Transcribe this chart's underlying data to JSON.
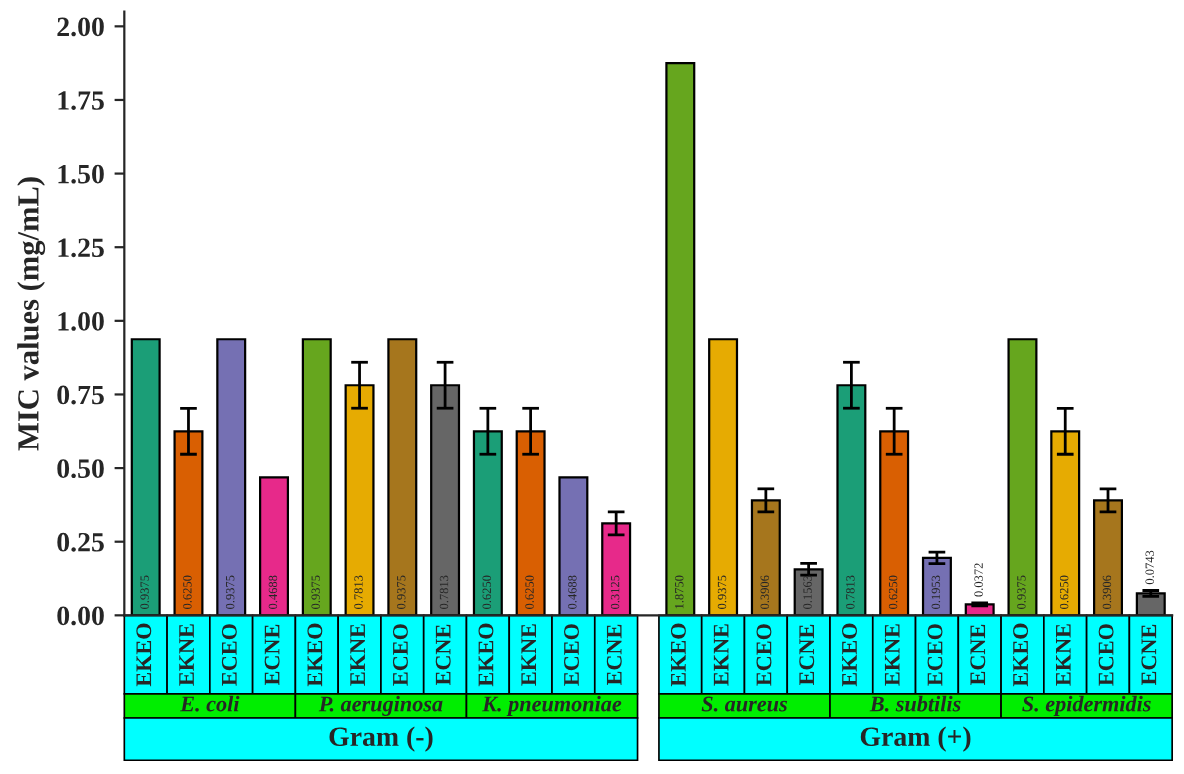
{
  "chart_data": {
    "type": "bar",
    "ylabel": "MIC values (mg/mL)",
    "categories": [
      "EKEO",
      "EKNE",
      "ECEO",
      "ECNE",
      "EKEO",
      "EKNE",
      "ECEO",
      "ECNE",
      "EKEO",
      "EKNE",
      "ECEO",
      "ECNE",
      "EKEO",
      "EKNE",
      "ECEO",
      "ECNE",
      "EKEO",
      "EKNE",
      "ECEO",
      "ECNE",
      "EKEO",
      "EKNE",
      "ECEO",
      "ECNE"
    ],
    "values": [
      0.9375,
      0.625,
      0.9375,
      0.4688,
      0.9375,
      0.7813,
      0.9375,
      0.7813,
      0.625,
      0.625,
      0.4688,
      0.3125,
      1.875,
      0.9375,
      0.3906,
      0.1563,
      0.7813,
      0.625,
      0.1953,
      0.0372,
      0.9375,
      0.625,
      0.3906,
      0.0743
    ],
    "errors": [
      null,
      0.078,
      null,
      null,
      null,
      0.078,
      null,
      0.078,
      0.078,
      0.078,
      null,
      0.039,
      null,
      null,
      0.039,
      0.02,
      0.078,
      0.078,
      0.0195,
      0.005,
      null,
      0.078,
      0.039,
      0.01
    ],
    "value_labels": [
      "0.9375",
      "0.6250",
      "0.9375",
      "0.4688",
      "0.9375",
      "0.7813",
      "0.9375",
      "0.7813",
      "0.6250",
      "0.6250",
      "0.4688",
      "0.3125",
      "1.8750",
      "0.9375",
      "0.3906",
      "0.1563",
      "0.7813",
      "0.6250",
      "0.1953",
      "0.0372",
      "0.9375",
      "0.6250",
      "0.3906",
      "0.0743"
    ],
    "colors": [
      "#1b9e77",
      "#d95f02",
      "#7570b3",
      "#e7298a",
      "#66a61e",
      "#e6ab02",
      "#a6761d",
      "#666666",
      "#1b9e77",
      "#d95f02",
      "#7570b3",
      "#e7298a",
      "#66a61e",
      "#e6ab02",
      "#a6761d",
      "#666666",
      "#1b9e77",
      "#d95f02",
      "#7570b3",
      "#e7298a",
      "#66a61e",
      "#e6ab02",
      "#a6761d",
      "#666666"
    ],
    "annotations": [
      "E. coli",
      "P. aeruginosa",
      "K. pneumoniae",
      "S. aureus",
      "B. subtilis",
      "S. epidermidis",
      "Gram (-)",
      "Gram (+)"
    ],
    "ylim": [
      0,
      2.05
    ],
    "yticks": [
      {
        "value": 0,
        "label": "0.00"
      },
      {
        "value": 0.25,
        "label": "0.25"
      },
      {
        "value": 0.5,
        "label": "0.50"
      },
      {
        "value": 0.75,
        "label": "0.75"
      },
      {
        "value": 1,
        "label": "1.00"
      },
      {
        "value": 1.25,
        "label": "1.25"
      },
      {
        "value": 1.5,
        "label": "1.50"
      },
      {
        "value": 1.75,
        "label": "1.75"
      },
      {
        "value": 2,
        "label": "2.00"
      }
    ],
    "grid": false
  }
}
